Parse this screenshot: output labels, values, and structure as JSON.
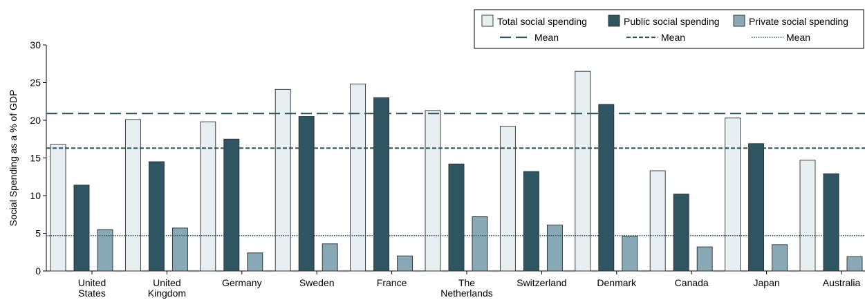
{
  "chart_data": {
    "type": "bar",
    "ylabel": "Social Spending as a % of GDP",
    "ylim": [
      0,
      30
    ],
    "yticks": [
      "0",
      "5",
      "10",
      "15",
      "20",
      "25",
      "30"
    ],
    "grid": false,
    "legend_position": "top-right",
    "categories": [
      [
        "United",
        "States"
      ],
      [
        "United",
        "Kingdom"
      ],
      [
        "Germany"
      ],
      [
        "Sweden"
      ],
      [
        "France"
      ],
      [
        "The",
        "Netherlands"
      ],
      [
        "Switzerland"
      ],
      [
        "Denmark"
      ],
      [
        "Canada"
      ],
      [
        "Japan"
      ],
      [
        "Australia"
      ]
    ],
    "series": [
      {
        "name": "Total social spending",
        "color": "#e8eff3",
        "values": [
          16.8,
          20.1,
          19.8,
          24.1,
          24.8,
          21.3,
          19.2,
          26.5,
          13.3,
          20.3,
          14.7
        ],
        "mean": 20.9,
        "mean_style": "long-dash",
        "mean_label": "Mean"
      },
      {
        "name": "Public social spending",
        "color": "#2f5563",
        "values": [
          11.4,
          14.5,
          17.5,
          20.5,
          23.0,
          14.2,
          13.2,
          22.1,
          10.2,
          16.9,
          12.9
        ],
        "mean": 16.3,
        "mean_style": "short-dash",
        "mean_label": "Mean"
      },
      {
        "name": "Private social spending",
        "color": "#87a8b4",
        "values": [
          5.5,
          5.7,
          2.4,
          3.6,
          2.0,
          7.2,
          6.1,
          4.6,
          3.2,
          3.5,
          1.9
        ],
        "mean": 4.7,
        "mean_style": "dotted",
        "mean_label": "Mean"
      }
    ]
  }
}
